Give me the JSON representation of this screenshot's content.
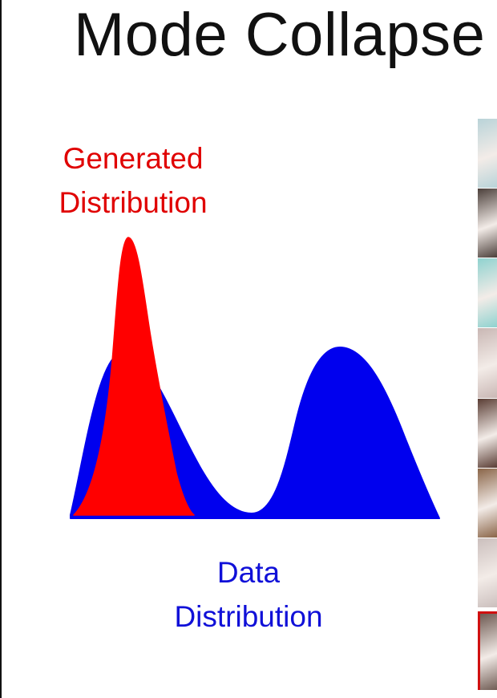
{
  "title": "Mode Collapse",
  "generated_label": {
    "line1": "Generated",
    "line2": "Distribution",
    "color": "#e00000"
  },
  "data_label": {
    "line1": "Data",
    "line2": "Distribution",
    "color": "#1010d8"
  },
  "colors": {
    "generated_fill": "#ff0000",
    "data_fill": "#0000ee",
    "highlight_border": "#d01010"
  },
  "image_strip": {
    "thumbnail_colors": [
      "#b9d3d8",
      "#4b3f3a",
      "#8fd2cf",
      "#c9b7b4",
      "#5a3d34",
      "#8a6548",
      "#cbbfbd",
      "#6e5a52"
    ],
    "highlighted_index": 7
  }
}
